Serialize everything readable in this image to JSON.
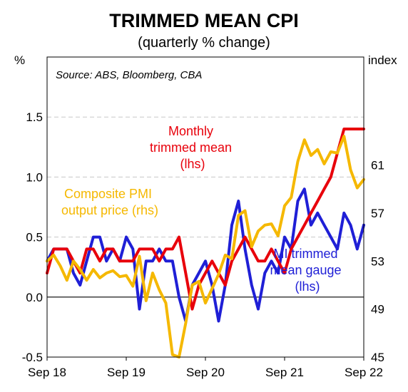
{
  "chart_data": {
    "type": "line",
    "title": "TRIMMED MEAN CPI",
    "subtitle": "(quarterly % change)",
    "source": "Source: ABS, Bloomberg, CBA",
    "y_left": {
      "unit_label": "%",
      "range": [
        -0.5,
        2.0
      ],
      "ticks": [
        "-0.5",
        "0.0",
        "0.5",
        "1.0",
        "1.5"
      ]
    },
    "y_right": {
      "unit_label": "index",
      "range": [
        45,
        70
      ],
      "ticks": [
        "45",
        "49",
        "53",
        "57",
        "61"
      ]
    },
    "x": {
      "ticks": [
        "Sep 18",
        "Sep 19",
        "Sep 20",
        "Sep 21",
        "Sep 22"
      ],
      "start_month": "2018-09",
      "months": 49
    },
    "grid": "horizontal dashed",
    "annotations": [
      {
        "series": "monthly_tm",
        "lines": [
          "Monthly",
          "trimmed mean",
          "(lhs)"
        ],
        "color": "#e8000b"
      },
      {
        "series": "pmi",
        "lines": [
          "Composite PMI",
          "output price (rhs)"
        ],
        "color": "#f5b800"
      },
      {
        "series": "mi_gauge",
        "lines": [
          "MI trimmed",
          "mean gauge",
          "(lhs)"
        ],
        "color": "#1f1fd6"
      }
    ],
    "series": [
      {
        "id": "mi_gauge",
        "axis": "left",
        "color": "#1f1fd6",
        "values": [
          0.3,
          0.4,
          0.4,
          0.4,
          0.2,
          0.1,
          0.3,
          0.5,
          0.5,
          0.3,
          0.4,
          0.3,
          0.5,
          0.4,
          -0.1,
          0.3,
          0.3,
          0.4,
          0.3,
          0.3,
          0.0,
          -0.2,
          0.1,
          0.2,
          0.3,
          0.1,
          -0.2,
          0.1,
          0.6,
          0.8,
          0.4,
          0.1,
          -0.1,
          0.2,
          0.3,
          0.2,
          0.5,
          0.4,
          0.8,
          0.9,
          0.6,
          0.7,
          0.6,
          0.5,
          0.4,
          0.7,
          0.6,
          0.4,
          0.6
        ]
      },
      {
        "id": "monthly_tm",
        "axis": "left",
        "color": "#e8000b",
        "values": [
          0.2,
          0.4,
          0.4,
          0.4,
          0.3,
          0.2,
          0.4,
          0.4,
          0.3,
          0.4,
          0.4,
          0.3,
          0.3,
          0.3,
          0.4,
          0.4,
          0.4,
          0.3,
          0.4,
          0.4,
          0.5,
          0.2,
          -0.1,
          0.1,
          0.2,
          0.3,
          0.2,
          0.1,
          0.3,
          0.4,
          0.5,
          0.4,
          0.3,
          0.3,
          0.4,
          0.3,
          0.2,
          0.4,
          0.5,
          0.6,
          0.7,
          0.8,
          0.9,
          1.0,
          1.2,
          1.4,
          1.4,
          1.4,
          1.4
        ]
      },
      {
        "id": "pmi",
        "axis": "right",
        "color": "#f5b800",
        "values": [
          53,
          53.5,
          52.6,
          51.4,
          53,
          52.3,
          51.4,
          52.3,
          51.6,
          52,
          52.2,
          51.7,
          51.8,
          50.9,
          53.4,
          49.7,
          52,
          50.6,
          49.5,
          45.2,
          45,
          47.8,
          51,
          51.3,
          49.5,
          50.7,
          51.9,
          53.5,
          53.2,
          56.8,
          57.2,
          54.2,
          55.5,
          56,
          56.1,
          55.1,
          57.6,
          58.3,
          61.3,
          63.1,
          61.8,
          62.3,
          61.1,
          62.1,
          62,
          63.4,
          60.6,
          59.1,
          59.8
        ]
      }
    ]
  }
}
